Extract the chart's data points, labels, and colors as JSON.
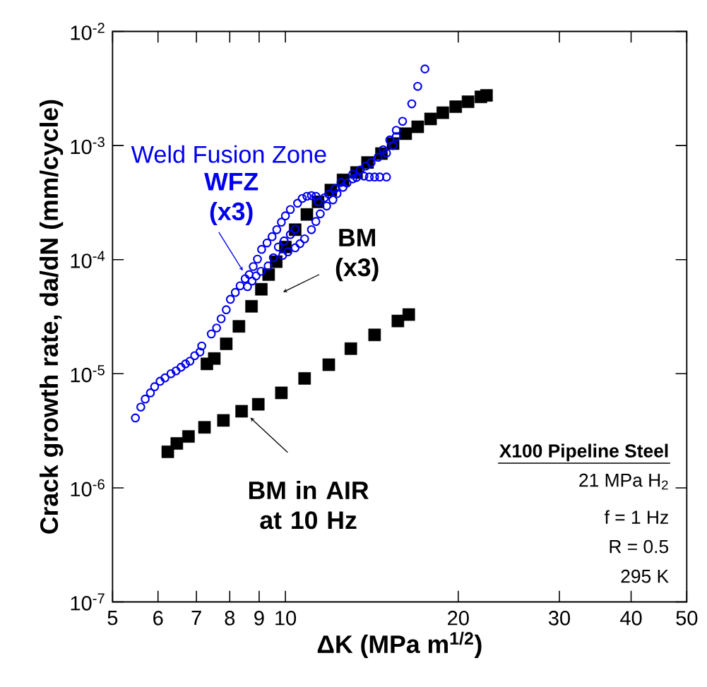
{
  "chart_data": {
    "type": "scatter",
    "xlabel": "ΔK (MPa m$^{1/2}$)",
    "ylabel": "Crack growth rate, da/dN (mm/cycle)",
    "log": "xy",
    "xlim": [
      5,
      50
    ],
    "ylim": [
      1e-07,
      0.01
    ],
    "xticks": [
      5,
      6,
      7,
      8,
      9,
      10,
      20,
      30,
      40,
      50
    ],
    "yticks": [
      {
        "value": 1e-07,
        "label": "10$^{-7}$"
      },
      {
        "value": 1e-06,
        "label": "10$^{-6}$"
      },
      {
        "value": 1e-05,
        "label": "10$^{-5}$"
      },
      {
        "value": 0.0001,
        "label": "10$^{-4}$"
      },
      {
        "value": 0.001,
        "label": "10$^{-3}$"
      },
      {
        "value": 0.01,
        "label": "10$^{-2}$"
      }
    ],
    "series": [
      {
        "color": "#0000ee",
        "marker": "circle",
        "x": [
          5.48,
          5.6,
          5.7,
          5.82,
          5.92,
          6.05,
          6.17,
          6.32,
          6.45,
          6.58,
          6.7,
          6.82,
          6.95,
          7.1,
          7.15,
          7.43,
          7.59,
          7.73,
          7.89,
          8.02,
          8.18,
          8.34,
          8.51,
          8.65,
          8.79,
          8.94,
          9.09,
          9.29,
          9.48,
          9.66,
          9.84,
          10.0,
          10.2,
          10.5,
          10.7,
          10.9,
          11.1,
          11.3,
          8.59,
          8.75,
          8.89,
          9.07,
          9.33,
          9.53,
          9.72,
          9.95,
          10.2,
          10.4,
          9.89,
          10.1,
          10.4,
          10.6,
          10.8,
          11.1,
          11.3,
          11.5,
          11.8,
          12.1,
          12.3,
          12.6,
          12.8,
          13.1,
          13.3,
          13.7,
          14.0,
          14.3,
          14.6,
          15.0,
          11.4,
          11.7,
          11.9,
          12.2,
          12.5,
          13.1,
          13.5,
          13.8,
          14.1,
          14.5,
          14.8,
          15.0,
          15.2,
          15.4,
          15.6,
          15.6,
          16.0,
          16.6,
          17.0,
          17.5
        ],
        "values": [
          4.1e-06,
          5.1e-06,
          6e-06,
          6.8e-06,
          7.7e-06,
          8.6e-06,
          9.2e-06,
          1e-05,
          1.06e-05,
          1.14e-05,
          1.22e-05,
          1.29e-05,
          1.44e-05,
          1.55e-05,
          1.75e-05,
          2.23e-05,
          2.52e-05,
          3.03e-05,
          3.64e-05,
          4.49e-05,
          5.16e-05,
          5.9e-05,
          6.8e-05,
          7.4e-05,
          8.7e-05,
          0.000101,
          0.000123,
          0.00014,
          0.000159,
          0.000183,
          0.000213,
          0.000242,
          0.000275,
          0.000312,
          0.000344,
          0.000359,
          0.000364,
          0.000359,
          5.8e-05,
          6.5e-05,
          7.2e-05,
          7.9e-05,
          8.8e-05,
          0.000104,
          0.000129,
          0.000146,
          0.000166,
          0.000185,
          0.000109,
          0.000117,
          0.000127,
          0.000138,
          0.000152,
          0.000183,
          0.000216,
          0.000252,
          0.000295,
          0.000334,
          0.000379,
          0.00043,
          0.000469,
          0.00051,
          0.000525,
          0.00054,
          0.00053,
          0.00053,
          0.00053,
          0.00053,
          0.000321,
          0.000349,
          0.000374,
          0.000419,
          0.000475,
          0.00056,
          0.00061,
          0.00066,
          0.00071,
          0.00079,
          0.00092,
          0.00086,
          0.00112,
          0.001,
          0.00136,
          0.0012,
          0.00163,
          0.00232,
          0.0033,
          0.00469
        ]
      },
      {
        "color": "#000000",
        "marker": "square",
        "x": [
          7.3,
          7.52,
          7.89,
          8.3,
          8.73,
          9.08,
          9.35,
          9.64,
          10.0,
          10.4,
          10.9,
          11.4,
          12.0,
          12.6,
          13.3,
          13.9,
          14.7,
          15.4,
          16.2,
          17.0,
          17.9,
          18.8,
          19.8,
          20.8,
          21.9,
          22.4
        ],
        "values": [
          1.22e-05,
          1.36e-05,
          1.83e-05,
          2.6e-05,
          3.9e-05,
          5.5e-05,
          7.4e-05,
          9.6e-05,
          0.000129,
          0.000183,
          0.000249,
          0.000321,
          0.000407,
          0.0005,
          0.00058,
          0.00071,
          0.00085,
          0.00104,
          0.00127,
          0.00146,
          0.00171,
          0.00194,
          0.00219,
          0.00242,
          0.00267,
          0.00275
        ]
      },
      {
        "color": "#000000",
        "marker": "square",
        "x": [
          6.24,
          6.47,
          6.78,
          7.23,
          7.8,
          8.39,
          8.97,
          9.84,
          10.8,
          11.9,
          13.0,
          14.3,
          15.7,
          16.4
        ],
        "values": [
          2.07e-06,
          2.45e-06,
          2.82e-06,
          3.39e-06,
          3.9e-06,
          4.69e-06,
          5.4e-06,
          6.8e-06,
          9.1e-06,
          1.2e-05,
          1.66e-05,
          2.19e-05,
          2.9e-05,
          3.3e-05
        ]
      }
    ],
    "annotations": [
      "Weld Fusion Zone",
      {
        "text": "WFZ (x3)",
        "x": 8.43,
        "y": 8e-05
      },
      "BM (x3)",
      "BM in AIR at 10 Hz",
      "X100 Pipeline Steel",
      "21 MPa H$_{2}$",
      "f = 1 Hz",
      "R = 0.5",
      "295 K"
    ]
  }
}
